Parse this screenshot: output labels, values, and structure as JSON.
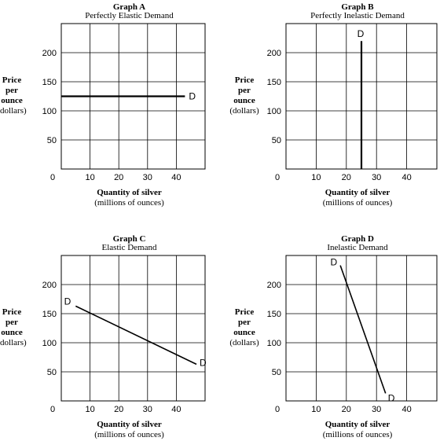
{
  "chart_data": [
    {
      "type": "line",
      "title": "Graph A",
      "subtitle": "Perfectly Elastic Demand",
      "ylabel": [
        "Price",
        "per",
        "ounce",
        "(dollars)"
      ],
      "xlabel": "Quantity of silver",
      "xlabel_unit": "(millions of ounces)",
      "xlim": [
        0,
        50
      ],
      "ylim": [
        0,
        250
      ],
      "xticks": [
        0,
        10,
        20,
        30,
        40
      ],
      "yticks": [
        50,
        100,
        150,
        200
      ],
      "grid": true,
      "series": [
        {
          "name": "D",
          "x": [
            0,
            43
          ],
          "y": [
            125,
            125
          ]
        }
      ],
      "annotations": [
        {
          "text": "D",
          "position": "end"
        }
      ]
    },
    {
      "type": "line",
      "title": "Graph B",
      "subtitle": "Perfectly Inelastic Demand",
      "ylabel": [
        "Price",
        "per",
        "ounce",
        "(dollars)"
      ],
      "xlabel": "Quantity of silver",
      "xlabel_unit": "(millions of ounces)",
      "xlim": [
        0,
        50
      ],
      "ylim": [
        0,
        250
      ],
      "xticks": [
        0,
        10,
        20,
        30,
        40
      ],
      "yticks": [
        50,
        100,
        150,
        200
      ],
      "grid": true,
      "series": [
        {
          "name": "D",
          "x": [
            25,
            25
          ],
          "y": [
            220,
            0
          ]
        }
      ],
      "annotations": [
        {
          "text": "D",
          "position": "start"
        }
      ]
    },
    {
      "type": "line",
      "title": "Graph C",
      "subtitle": "Elastic Demand",
      "ylabel": [
        "Price",
        "per",
        "ounce",
        "(dollars)"
      ],
      "xlabel": "Quantity of silver",
      "xlabel_unit": "(millions of ounces)",
      "xlim": [
        0,
        50
      ],
      "ylim": [
        0,
        250
      ],
      "xticks": [
        0,
        10,
        20,
        30,
        40
      ],
      "yticks": [
        50,
        100,
        150,
        200
      ],
      "grid": true,
      "series": [
        {
          "name": "D",
          "x": [
            5,
            47
          ],
          "y": [
            163,
            63
          ]
        }
      ],
      "annotations": [
        {
          "text": "D",
          "position": "both"
        }
      ]
    },
    {
      "type": "line",
      "title": "Graph D",
      "subtitle": "Inelastic Demand",
      "ylabel": [
        "Price",
        "per",
        "ounce",
        "(dollars)"
      ],
      "xlabel": "Quantity of silver",
      "xlabel_unit": "(millions of ounces)",
      "xlim": [
        0,
        50
      ],
      "ylim": [
        0,
        250
      ],
      "xticks": [
        0,
        10,
        20,
        30,
        40
      ],
      "yticks": [
        50,
        100,
        150,
        200
      ],
      "grid": true,
      "series": [
        {
          "name": "D",
          "x": [
            18,
            33
          ],
          "y": [
            233,
            13
          ]
        }
      ],
      "annotations": [
        {
          "text": "D",
          "position": "both"
        }
      ]
    }
  ]
}
